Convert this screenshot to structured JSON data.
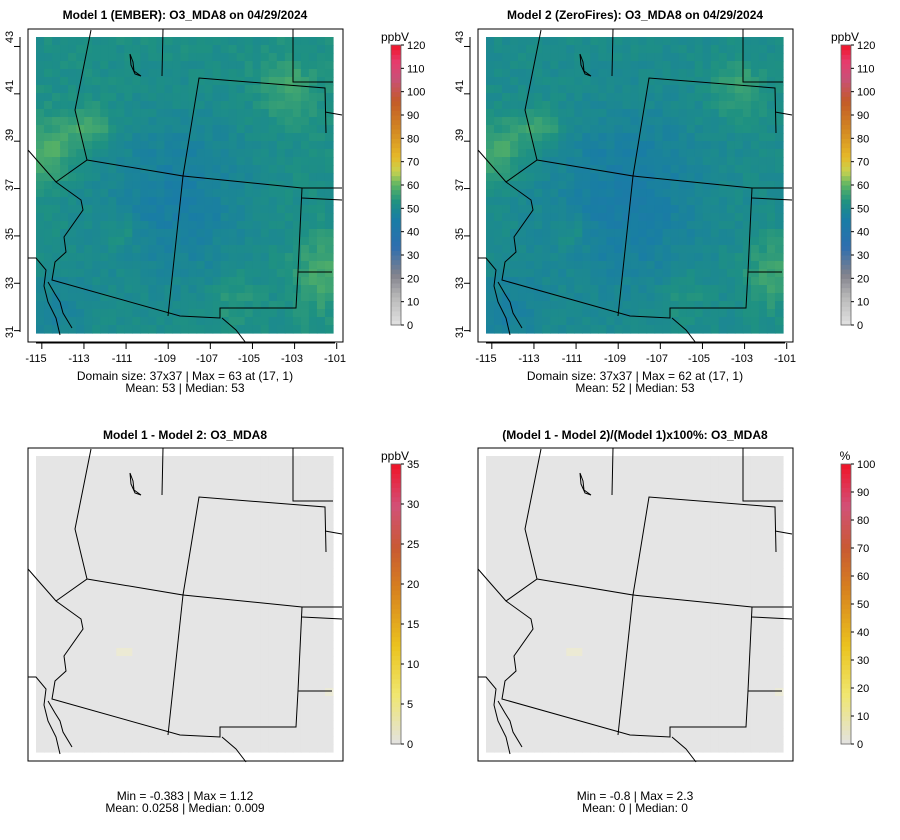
{
  "colors": {
    "background": "#ffffff",
    "frame": "#000000",
    "boundary": "#000000",
    "diff_fill": "#e6e6e6"
  },
  "chart_data": [
    {
      "type": "heatmap",
      "title": "Model 1 (EMBER): O3_MDA8 on 04/29/2024",
      "grid_size": [
        37,
        37
      ],
      "lon_range": [
        -115.3,
        -101.2
      ],
      "lat_range": [
        30.9,
        43.4
      ],
      "x_ticks": [
        "-115",
        "-113",
        "-111",
        "-109",
        "-107",
        "-105",
        "-103",
        "-101"
      ],
      "y_ticks": [
        "31",
        "33",
        "35",
        "37",
        "39",
        "41",
        "43"
      ],
      "legend_title": "ppbV",
      "legend_ticks": [
        "0",
        "10",
        "20",
        "30",
        "40",
        "50",
        "60",
        "70",
        "80",
        "90",
        "100",
        "110",
        "120"
      ],
      "legend_max": 120,
      "stats_line1": "Domain size: 37x37 | Max = 63 at (17, 1)",
      "stats_line2": "Mean: 53 |  Median: 53",
      "field": {
        "kind": "ozone",
        "mean": 53,
        "max": 63
      }
    },
    {
      "type": "heatmap",
      "title": "Model 2 (ZeroFires): O3_MDA8 on 04/29/2024",
      "grid_size": [
        37,
        37
      ],
      "lon_range": [
        -115.3,
        -101.2
      ],
      "lat_range": [
        30.9,
        43.4
      ],
      "x_ticks": [
        "-115",
        "-113",
        "-111",
        "-109",
        "-107",
        "-105",
        "-103",
        "-101"
      ],
      "y_ticks": [
        "31",
        "33",
        "35",
        "37",
        "39",
        "41",
        "43"
      ],
      "legend_title": "ppbV",
      "legend_ticks": [
        "0",
        "10",
        "20",
        "30",
        "40",
        "50",
        "60",
        "70",
        "80",
        "90",
        "100",
        "110",
        "120"
      ],
      "legend_max": 120,
      "stats_line1": "Domain size: 37x37 | Max = 62 at (17, 1)",
      "stats_line2": "Mean: 52 |  Median: 53",
      "field": {
        "kind": "ozone",
        "mean": 52,
        "max": 62
      }
    },
    {
      "type": "heatmap",
      "title": "Model 1 - Model 2: O3_MDA8",
      "grid_size": [
        37,
        37
      ],
      "legend_title": "ppbV",
      "legend_ticks": [
        "0",
        "5",
        "10",
        "15",
        "20",
        "25",
        "30",
        "35"
      ],
      "legend_max": 35,
      "stats_line1": "Min = -0.383 | Max = 1.12",
      "stats_line2": "Mean: 0.0258 |  Median: 0.009",
      "field": {
        "kind": "difference",
        "min": -0.383,
        "max": 1.12
      }
    },
    {
      "type": "heatmap",
      "title": "(Model 1 - Model 2)/(Model 1)x100%: O3_MDA8",
      "grid_size": [
        37,
        37
      ],
      "legend_title": "%",
      "legend_ticks": [
        "0",
        "10",
        "20",
        "30",
        "40",
        "50",
        "60",
        "70",
        "80",
        "90",
        "100"
      ],
      "legend_max": 100,
      "stats_line1": "Min = -0.8 | Max = 2.3",
      "stats_line2": "Mean: 0 |  Median: 0",
      "field": {
        "kind": "difference",
        "min": -0.8,
        "max": 2.3
      }
    }
  ]
}
